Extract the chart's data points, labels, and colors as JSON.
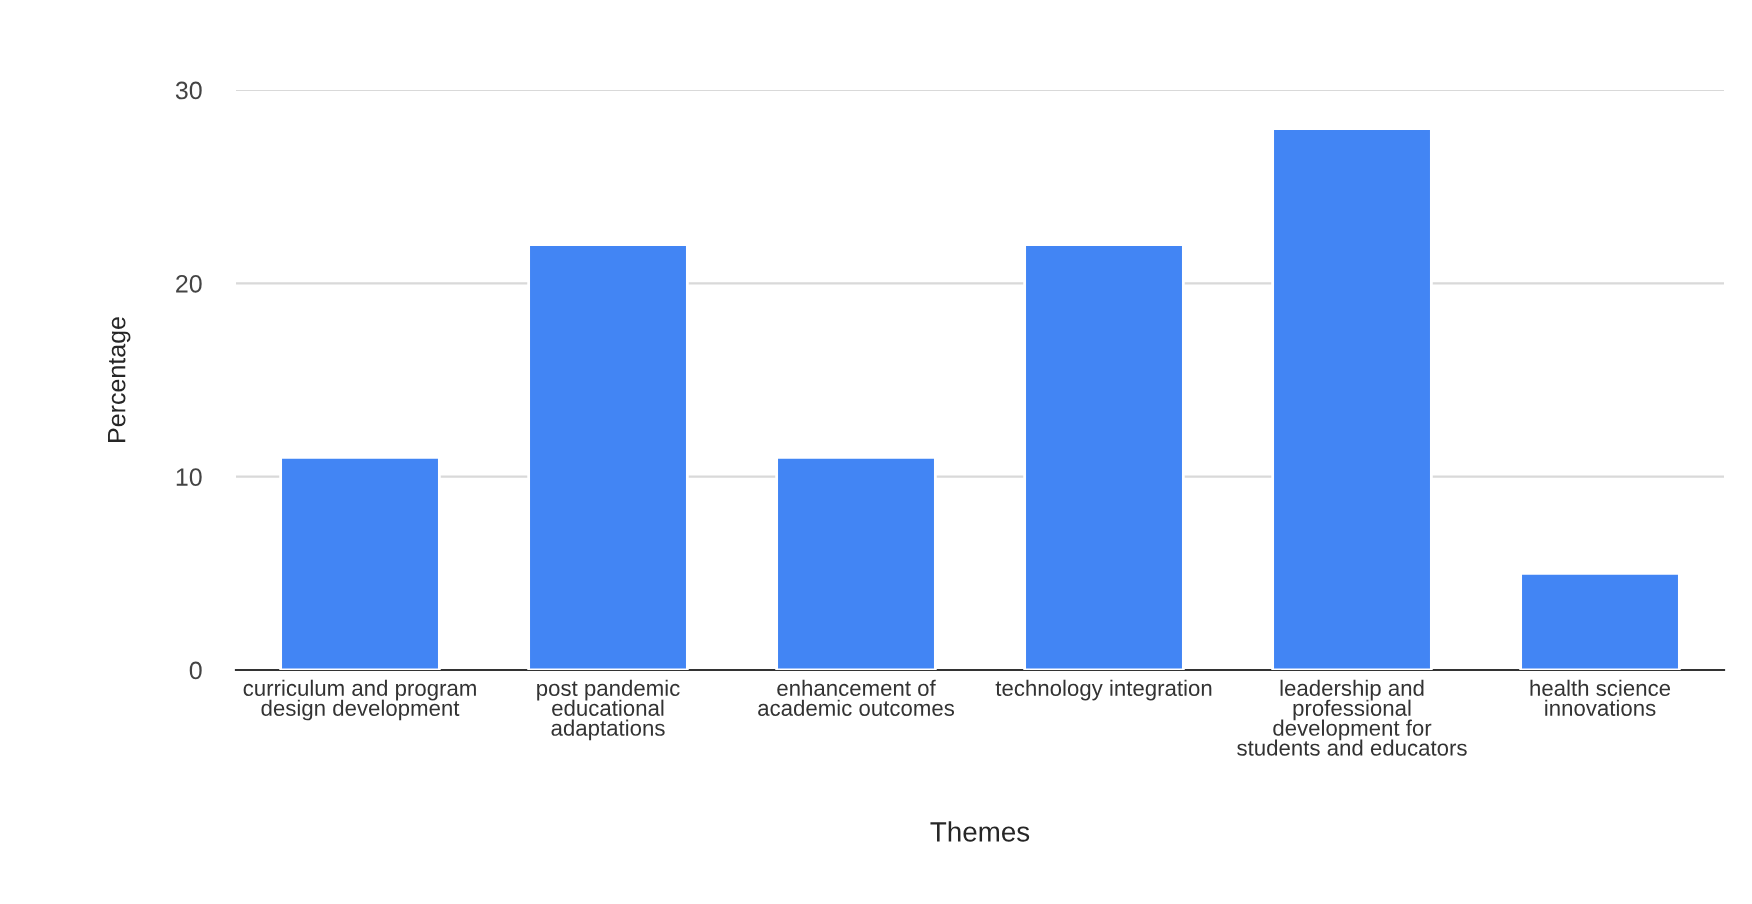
{
  "chart_data": {
    "type": "bar",
    "xlabel": "Themes",
    "ylabel": "Percentage",
    "categories": [
      "curriculum and program design development",
      "post pandemic educational adaptations",
      "enhancement of academic outcomes",
      "technology integration",
      "leadership and professional development for students and educators",
      "health science innovations"
    ],
    "values": [
      11,
      22,
      11,
      22,
      28,
      5
    ],
    "color": "#4285f4",
    "ylim": [
      0,
      30
    ],
    "yticks": [
      0,
      10,
      20,
      30
    ],
    "grid": "y",
    "legend": false
  }
}
